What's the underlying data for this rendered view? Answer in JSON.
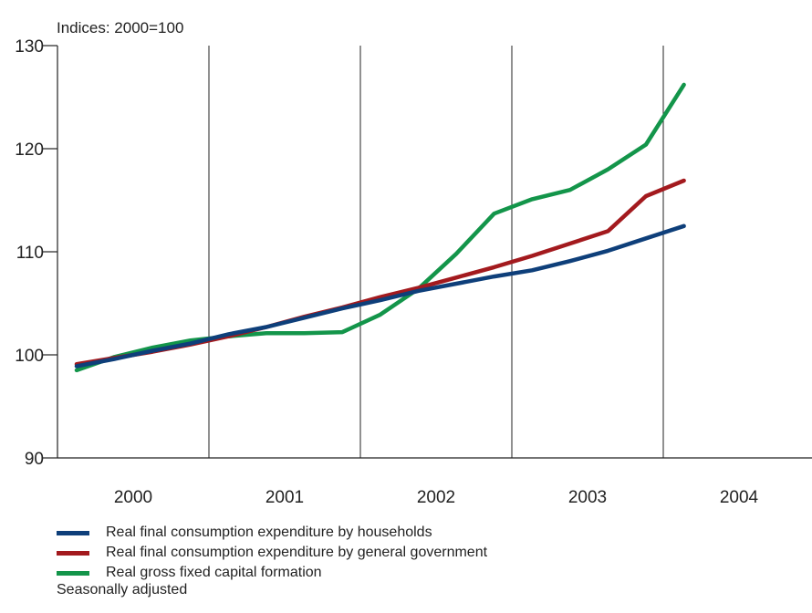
{
  "chart_data": {
    "type": "line",
    "ylabel": "Indices: 2000=100",
    "ylim": [
      90,
      130
    ],
    "yticks": [
      90,
      100,
      110,
      120,
      130
    ],
    "x_axis_years": [
      "2000",
      "2001",
      "2002",
      "2003",
      "2004"
    ],
    "x_quarters": [
      "2000Q1",
      "2000Q2",
      "2000Q3",
      "2000Q4",
      "2001Q1",
      "2001Q2",
      "2001Q3",
      "2001Q4",
      "2002Q1",
      "2002Q2",
      "2002Q3",
      "2002Q4",
      "2003Q1",
      "2003Q2",
      "2003Q3",
      "2003Q4",
      "2004Q1"
    ],
    "grid": "vertical lines at year boundaries",
    "legend_position": "bottom",
    "series": [
      {
        "name": "Real final consumption expenditure by households",
        "color": "#0e3f7a",
        "values": [
          98.9,
          99.6,
          100.4,
          101.1,
          102.0,
          102.7,
          103.6,
          104.5,
          105.3,
          106.2,
          106.9,
          107.6,
          108.2,
          109.1,
          110.1,
          111.3,
          112.5
        ]
      },
      {
        "name": "Real final consumption expenditure by general government",
        "color": "#a31a1e",
        "values": [
          99.1,
          99.7,
          100.3,
          101.0,
          101.8,
          102.7,
          103.7,
          104.6,
          105.6,
          106.5,
          107.5,
          108.5,
          109.6,
          110.8,
          112.0,
          115.4,
          116.9
        ]
      },
      {
        "name": "Real gross fixed capital formation",
        "color": "#13954a",
        "values": [
          98.5,
          99.8,
          100.7,
          101.4,
          101.8,
          102.1,
          102.1,
          102.2,
          103.9,
          106.4,
          109.8,
          113.7,
          115.1,
          116.0,
          118.0,
          120.4,
          126.2
        ]
      }
    ],
    "footnote": "Seasonally adjusted"
  }
}
